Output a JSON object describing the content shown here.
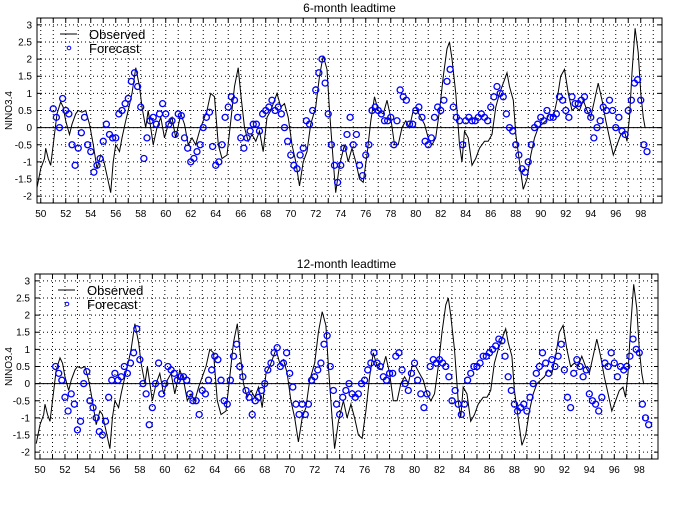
{
  "chart_data": [
    {
      "type": "line+scatter",
      "title": "6-month leadtime",
      "xlabel": "",
      "ylabel": "NINO3.4",
      "xlim": [
        49.7,
        99.7
      ],
      "ylim": [
        -2.2,
        3.2
      ],
      "xticks": [
        50,
        52,
        54,
        56,
        58,
        60,
        62,
        64,
        66,
        68,
        70,
        72,
        74,
        76,
        78,
        80,
        82,
        84,
        86,
        88,
        90,
        92,
        94,
        96,
        98
      ],
      "yticks": [
        -2,
        -1.5,
        -1,
        -0.5,
        0,
        0.5,
        1,
        1.5,
        2,
        2.5,
        3
      ],
      "grid": true,
      "legend": {
        "placement": "top-left",
        "entries": [
          "Observed",
          "Forecast"
        ]
      },
      "colors": {
        "observed": "#000000",
        "forecast": "#0000ff"
      },
      "forecast": {
        "x_start": 51.0,
        "x_step": 0.25,
        "values": [
          0.55,
          0.3,
          0.0,
          0.85,
          0.5,
          0.4,
          -0.5,
          -1.1,
          -0.6,
          -0.15,
          0.3,
          -0.5,
          -0.7,
          -1.3,
          -1.1,
          -0.9,
          -0.4,
          0.1,
          -0.2,
          -0.3,
          -0.3,
          0.4,
          0.5,
          0.7,
          0.85,
          1.35,
          1.6,
          1.2,
          0.6,
          -0.9,
          -0.3,
          0.2,
          0.3,
          0.1,
          0.4,
          0.7,
          0.4,
          0.1,
          0.2,
          -0.2,
          0.4,
          0.35,
          -0.3,
          -0.6,
          -1.0,
          -0.9,
          -0.7,
          -0.5,
          0.0,
          0.3,
          0.45,
          -0.55,
          -1.1,
          -1.0,
          -0.5,
          0.3,
          0.6,
          0.9,
          0.8,
          0.3,
          -0.3,
          -0.6,
          -0.3,
          -0.1,
          0.1,
          0.1,
          -0.1,
          0.4,
          0.5,
          0.6,
          0.8,
          0.5,
          0.6,
          0.4,
          0.0,
          -0.4,
          -0.8,
          -1.1,
          -1.2,
          -0.8,
          -0.6,
          0.2,
          0.1,
          0.5,
          1.1,
          1.6,
          2.0,
          1.3,
          0.4,
          -0.5,
          -1.1,
          -1.6,
          -1.1,
          -0.6,
          -0.2,
          0.3,
          -0.5,
          -0.2,
          -1.1,
          -1.4,
          -0.8,
          -0.5,
          0.5,
          0.6,
          0.5,
          0.4,
          0.2,
          0.2,
          0.3,
          -0.5,
          0.2,
          1.1,
          0.9,
          0.8,
          0.1,
          0.1,
          0.5,
          0.6,
          0.3,
          -0.4,
          -0.5,
          -0.3,
          0.3,
          0.6,
          0.5,
          0.8,
          1.35,
          1.7,
          0.6,
          0.3,
          0.2,
          -0.5,
          0.2,
          0.3,
          0.2,
          0.2,
          0.3,
          0.4,
          0.3,
          0.2,
          0.6,
          0.9,
          1.2,
          1.0,
          0.9,
          0.4,
          0.0,
          -0.1,
          -0.5,
          -0.8,
          -1.2,
          -1.3,
          -1.0,
          -0.5,
          0.0,
          0.1,
          0.3,
          0.2,
          0.5,
          0.3,
          0.3,
          0.4,
          0.9,
          0.8,
          0.5,
          0.3,
          0.9,
          0.7,
          0.7,
          0.8,
          0.9,
          0.5,
          0.3,
          -0.3,
          0.0,
          0.2,
          0.6,
          0.5,
          0.8,
          0.5,
          0.0,
          0.3,
          -0.1,
          -0.2,
          0.5,
          0.8,
          1.3,
          1.4,
          0.8,
          -0.5,
          -0.7
        ]
      }
    },
    {
      "type": "line+scatter",
      "title": "12-month leadtime",
      "xlabel": "",
      "ylabel": "NINO3.4",
      "xlim": [
        49.6,
        99.5
      ],
      "ylim": [
        -2.2,
        3.2
      ],
      "xticks": [
        50,
        52,
        54,
        56,
        58,
        60,
        62,
        64,
        66,
        68,
        70,
        72,
        74,
        76,
        78,
        80,
        82,
        84,
        86,
        88,
        90,
        92,
        94,
        96,
        98
      ],
      "yticks": [
        -2,
        -1.5,
        -1,
        -0.5,
        0,
        0.5,
        1,
        1.5,
        2,
        2.5,
        3
      ],
      "grid": true,
      "legend": {
        "placement": "top-left",
        "entries": [
          "Observed",
          "Forecast"
        ]
      },
      "colors": {
        "observed": "#000000",
        "forecast": "#0000ff"
      },
      "forecast": {
        "x_start": 51.25,
        "x_step": 0.25,
        "values": [
          0.5,
          0.3,
          0.1,
          -0.4,
          -0.8,
          -0.3,
          -0.6,
          -1.35,
          -1.1,
          0.0,
          0.35,
          -0.5,
          -0.7,
          -1.0,
          -1.4,
          -1.5,
          -1.1,
          -0.4,
          0.1,
          0.3,
          0.1,
          0.2,
          0.5,
          0.3,
          0.6,
          0.9,
          1.6,
          0.7,
          0.0,
          -0.3,
          -1.2,
          -0.7,
          0.0,
          0.6,
          -0.3,
          0.0,
          0.5,
          0.4,
          0.3,
          0.1,
          0.2,
          0.2,
          0.1,
          -0.3,
          -0.5,
          -0.5,
          -0.9,
          -0.2,
          -0.3,
          0.1,
          0.4,
          0.8,
          0.7,
          0.1,
          -0.5,
          -0.6,
          0.1,
          0.8,
          1.15,
          0.5,
          0.2,
          -0.2,
          -0.4,
          -0.9,
          -0.5,
          -0.4,
          -0.2,
          0.0,
          0.4,
          0.6,
          0.9,
          1.05,
          0.5,
          0.6,
          0.9,
          0.3,
          -0.1,
          -0.6,
          -0.9,
          -0.6,
          -0.9,
          -0.6,
          0.1,
          0.2,
          0.4,
          0.6,
          1.15,
          1.4,
          0.5,
          -0.2,
          -0.6,
          -0.9,
          -0.4,
          -0.2,
          0.0,
          -0.3,
          -0.4,
          -0.3,
          0.0,
          0.1,
          0.4,
          0.6,
          0.9,
          0.6,
          0.5,
          0.2,
          0.1,
          0.3,
          0.3,
          0.8,
          0.9,
          0.4,
          0.0,
          -0.2,
          0.3,
          0.6,
          0.1,
          -0.3,
          -0.7,
          -0.3,
          0.5,
          0.7,
          0.6,
          0.7,
          0.6,
          0.5,
          0.2,
          -0.5,
          -0.2,
          -0.6,
          -0.9,
          -0.6,
          0.1,
          0.3,
          0.5,
          0.5,
          0.6,
          0.8,
          0.8,
          0.9,
          1.0,
          1.1,
          1.3,
          1.25,
          0.8,
          0.2,
          -0.2,
          -0.6,
          -0.8,
          -0.7,
          -0.6,
          -0.8,
          -0.4,
          0.0,
          0.3,
          0.5,
          0.9,
          0.6,
          0.3,
          0.7,
          0.5,
          0.8,
          1.15,
          0.4,
          -0.4,
          -0.7,
          0.3,
          0.7,
          0.5,
          0.2,
          0.4,
          -0.3,
          -0.5,
          -0.6,
          -0.8,
          -0.4,
          0.6,
          0.5,
          0.9,
          0.6,
          0.2,
          0.5,
          0.4,
          0.5,
          0.8,
          1.3,
          1.0,
          0.9,
          -0.6,
          -1.0,
          -1.2
        ]
      }
    }
  ],
  "observed": [
    [
      49.7,
      -1.75
    ],
    [
      50.0,
      -1.2
    ],
    [
      50.3,
      -0.9
    ],
    [
      50.4,
      -0.6
    ],
    [
      50.6,
      -0.9
    ],
    [
      50.8,
      -1.1
    ],
    [
      51.0,
      -0.5
    ],
    [
      51.3,
      0.4
    ],
    [
      51.6,
      0.75
    ],
    [
      51.8,
      0.6
    ],
    [
      52.0,
      0.2
    ],
    [
      52.3,
      -0.2
    ],
    [
      52.5,
      0.1
    ],
    [
      52.8,
      0.4
    ],
    [
      53.0,
      0.5
    ],
    [
      53.3,
      0.45
    ],
    [
      53.6,
      0.5
    ],
    [
      53.9,
      0.1
    ],
    [
      54.2,
      -0.5
    ],
    [
      54.5,
      -1.2
    ],
    [
      54.8,
      -0.8
    ],
    [
      55.0,
      -0.9
    ],
    [
      55.3,
      -1.4
    ],
    [
      55.6,
      -1.9
    ],
    [
      55.8,
      -1.0
    ],
    [
      56.0,
      -0.5
    ],
    [
      56.3,
      -0.7
    ],
    [
      56.5,
      -0.3
    ],
    [
      56.8,
      0.2
    ],
    [
      57.0,
      0.5
    ],
    [
      57.3,
      1.0
    ],
    [
      57.6,
      1.75
    ],
    [
      57.9,
      1.2
    ],
    [
      58.1,
      0.6
    ],
    [
      58.4,
      0.0
    ],
    [
      58.6,
      0.5
    ],
    [
      58.8,
      0.0
    ],
    [
      59.0,
      -0.5
    ],
    [
      59.3,
      0.0
    ],
    [
      59.6,
      0.3
    ],
    [
      59.9,
      -0.3
    ],
    [
      60.2,
      0.1
    ],
    [
      60.5,
      0.3
    ],
    [
      60.8,
      -0.3
    ],
    [
      61.2,
      0.4
    ],
    [
      61.5,
      0.1
    ],
    [
      61.8,
      -0.5
    ],
    [
      62.1,
      -0.3
    ],
    [
      62.4,
      -0.5
    ],
    [
      62.7,
      -0.1
    ],
    [
      63.0,
      0.2
    ],
    [
      63.3,
      0.5
    ],
    [
      63.6,
      1.0
    ],
    [
      63.9,
      0.9
    ],
    [
      64.2,
      -0.5
    ],
    [
      64.5,
      -0.9
    ],
    [
      64.9,
      -0.8
    ],
    [
      65.2,
      0.2
    ],
    [
      65.5,
      1.2
    ],
    [
      65.8,
      1.75
    ],
    [
      66.0,
      1.0
    ],
    [
      66.3,
      0.0
    ],
    [
      66.6,
      -0.4
    ],
    [
      66.9,
      -0.2
    ],
    [
      67.2,
      -0.4
    ],
    [
      67.5,
      -0.1
    ],
    [
      67.8,
      -0.7
    ],
    [
      68.1,
      0.3
    ],
    [
      68.4,
      0.5
    ],
    [
      68.7,
      0.8
    ],
    [
      68.9,
      1.0
    ],
    [
      69.2,
      0.6
    ],
    [
      69.5,
      0.7
    ],
    [
      69.8,
      0.3
    ],
    [
      70.1,
      -0.5
    ],
    [
      70.4,
      -1.0
    ],
    [
      70.7,
      -1.7
    ],
    [
      71.0,
      -1.0
    ],
    [
      71.3,
      -0.7
    ],
    [
      71.6,
      0.1
    ],
    [
      72.0,
      0.6
    ],
    [
      72.3,
      1.5
    ],
    [
      72.6,
      2.1
    ],
    [
      72.9,
      1.7
    ],
    [
      73.1,
      0.5
    ],
    [
      73.4,
      -1.0
    ],
    [
      73.6,
      -1.9
    ],
    [
      73.9,
      -1.1
    ],
    [
      74.3,
      -0.5
    ],
    [
      74.6,
      -1.0
    ],
    [
      74.9,
      -0.6
    ],
    [
      75.2,
      -1.0
    ],
    [
      75.5,
      -1.5
    ],
    [
      75.8,
      -1.6
    ],
    [
      76.1,
      -0.8
    ],
    [
      76.4,
      0.2
    ],
    [
      76.7,
      0.9
    ],
    [
      77.0,
      0.5
    ],
    [
      77.4,
      0.4
    ],
    [
      77.7,
      0.8
    ],
    [
      78.0,
      0.3
    ],
    [
      78.3,
      -0.5
    ],
    [
      78.6,
      -0.5
    ],
    [
      78.9,
      0.0
    ],
    [
      79.2,
      0.2
    ],
    [
      79.5,
      0.0
    ],
    [
      79.8,
      0.5
    ],
    [
      80.1,
      0.5
    ],
    [
      80.4,
      0.3
    ],
    [
      80.7,
      0.1
    ],
    [
      81.0,
      -0.3
    ],
    [
      81.3,
      -0.5
    ],
    [
      81.6,
      -0.3
    ],
    [
      81.9,
      0.5
    ],
    [
      82.2,
      1.5
    ],
    [
      82.5,
      2.3
    ],
    [
      82.7,
      2.5
    ],
    [
      82.9,
      2.0
    ],
    [
      83.2,
      1.0
    ],
    [
      83.5,
      -0.5
    ],
    [
      83.7,
      -1.0
    ],
    [
      83.9,
      -0.1
    ],
    [
      84.2,
      -0.3
    ],
    [
      84.5,
      -1.1
    ],
    [
      84.8,
      -0.9
    ],
    [
      85.1,
      -0.6
    ],
    [
      85.5,
      -0.4
    ],
    [
      85.8,
      -0.4
    ],
    [
      86.1,
      -0.2
    ],
    [
      86.4,
      0.6
    ],
    [
      86.7,
      1.0
    ],
    [
      87.0,
      1.3
    ],
    [
      87.3,
      1.6
    ],
    [
      87.5,
      1.2
    ],
    [
      87.8,
      0.8
    ],
    [
      88.0,
      -0.2
    ],
    [
      88.3,
      -1.0
    ],
    [
      88.6,
      -1.8
    ],
    [
      88.9,
      -1.5
    ],
    [
      89.2,
      -0.8
    ],
    [
      89.5,
      -0.3
    ],
    [
      89.8,
      0.0
    ],
    [
      90.1,
      0.1
    ],
    [
      90.4,
      0.2
    ],
    [
      90.7,
      0.4
    ],
    [
      91.0,
      0.3
    ],
    [
      91.3,
      0.8
    ],
    [
      91.6,
      1.5
    ],
    [
      91.9,
      1.7
    ],
    [
      92.2,
      1.0
    ],
    [
      92.5,
      0.5
    ],
    [
      92.8,
      0.6
    ],
    [
      93.1,
      0.5
    ],
    [
      93.4,
      0.8
    ],
    [
      93.7,
      0.5
    ],
    [
      94.0,
      0.3
    ],
    [
      94.3,
      0.8
    ],
    [
      94.6,
      1.3
    ],
    [
      94.9,
      0.8
    ],
    [
      95.2,
      0.2
    ],
    [
      95.5,
      -0.3
    ],
    [
      95.8,
      -0.8
    ],
    [
      96.1,
      -0.5
    ],
    [
      96.4,
      -0.2
    ],
    [
      96.7,
      -0.1
    ],
    [
      96.9,
      -0.4
    ],
    [
      97.1,
      0.3
    ],
    [
      97.3,
      1.6
    ],
    [
      97.55,
      2.9
    ],
    [
      97.8,
      2.2
    ],
    [
      98.0,
      1.0
    ],
    [
      98.2,
      0.3
    ],
    [
      98.35,
      0.0
    ]
  ]
}
